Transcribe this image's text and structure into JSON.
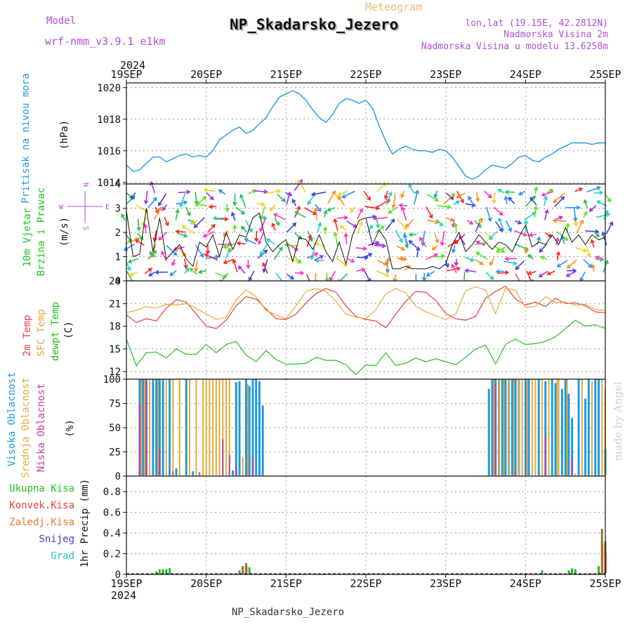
{
  "header": {
    "model_label": "Model",
    "model_value": "wrf-nmm_v3.9.1  e1km",
    "title": "NP_Skadarsko_Jezero",
    "subtitle": "Meteogram",
    "coords": "lon,lat (19.15E, 42.2812N)",
    "height_line": "Nadmorska Visina 2m",
    "model_height_line": "Nadmorska Visina u modelu 13.6258m",
    "footer": "NP_Skadarsko_Jezero",
    "watermark": "made by Angel"
  },
  "time_axis": {
    "year": "2024",
    "labels": [
      "19SEP",
      "20SEP",
      "21SEP",
      "22SEP",
      "23SEP",
      "24SEP",
      "25SEP"
    ]
  },
  "colors": {
    "pressure": "#1e9be0",
    "temp2m": "#e83c3c",
    "sfctemp": "#e8a838",
    "dewpt": "#22c022",
    "high_cloud": "#1e9be0",
    "mid_cloud": "#e8a838",
    "low_cloud": "#c83ca0",
    "total_precip": "#22c022",
    "conv_precip": "#e83c3c",
    "frozen_precip": "#e87830",
    "snow": "#4040d8",
    "graupel": "#20c0c0",
    "wind_speed": "#111111",
    "wind_legend": "#b04ed8"
  },
  "panels": {
    "pressure": {
      "label": "Pritisak na nivou mora",
      "unit": "(hPa)",
      "ticks": [
        "1014",
        "1016",
        "1018",
        "1020"
      ]
    },
    "wind": {
      "label1": "10m Vjetar",
      "label2": "Brzina i Pravac",
      "unit": "(m/s)",
      "ticks": [
        "0",
        "1",
        "2",
        "3",
        "4"
      ],
      "legend_n": "N",
      "legend_s": "S",
      "legend_w": "W",
      "legend_e": "E"
    },
    "temp": {
      "label1": "2m Temp",
      "label2": "SFC Temp",
      "label3": "dewpt Temp",
      "unit": "(C)",
      "ticks": [
        "12",
        "15",
        "18",
        "21",
        "24"
      ]
    },
    "cloud": {
      "label1": "Visoka Oblacnost",
      "label2": "Srednja Oblacnost",
      "label3": "Niska Oblacnost",
      "unit": "(%)",
      "ticks": [
        "0",
        "25",
        "50",
        "75",
        "100"
      ]
    },
    "precip": {
      "label": "1hr Precip (mm)",
      "ticks": [
        "0",
        "0.2",
        "0.4",
        "0.6",
        "0.8"
      ],
      "legend": [
        "Ukupna Kisa",
        "Konvek.Kisa",
        "Zaledj.Kisa",
        "Snijeg",
        "Grad"
      ]
    }
  },
  "chart_data": [
    {
      "type": "line",
      "title": "Pritisak na nivou mora",
      "ylabel": "(hPa)",
      "ylim": [
        1013.9,
        1020.3
      ],
      "xlim": [
        0,
        144
      ],
      "x_unit": "hours from 19SEP 00",
      "series": [
        {
          "name": "Pritisak na nivou mora",
          "x": [
            0,
            2,
            4,
            6,
            8,
            10,
            12,
            14,
            16,
            18,
            20,
            22,
            24,
            26,
            28,
            30,
            32,
            34,
            36,
            38,
            40,
            42,
            44,
            46,
            48,
            50,
            52,
            54,
            56,
            58,
            60,
            62,
            64,
            66,
            68,
            70,
            72,
            74,
            76,
            78,
            80,
            82,
            84,
            86,
            88,
            90,
            92,
            94,
            96,
            98,
            100,
            102,
            104,
            106,
            108,
            110,
            112,
            114,
            116,
            118,
            120,
            122,
            124,
            126,
            128,
            130,
            132,
            134,
            136,
            138,
            140,
            142,
            144
          ],
          "values": [
            1015.1,
            1014.7,
            1014.8,
            1015.2,
            1015.6,
            1015.6,
            1015.3,
            1015.5,
            1015.7,
            1015.8,
            1015.6,
            1015.7,
            1015.6,
            1016.0,
            1016.7,
            1017.0,
            1017.3,
            1017.5,
            1017.1,
            1017.3,
            1017.7,
            1018.1,
            1018.8,
            1019.4,
            1019.6,
            1019.8,
            1019.6,
            1019.2,
            1018.6,
            1018.1,
            1017.8,
            1018.3,
            1019.0,
            1019.3,
            1019.2,
            1019.0,
            1019.2,
            1018.7,
            1017.6,
            1016.6,
            1015.8,
            1016.1,
            1016.3,
            1016.1,
            1016.0,
            1016.0,
            1015.9,
            1016.1,
            1016.0,
            1015.6,
            1015.0,
            1014.4,
            1014.2,
            1014.4,
            1014.8,
            1015.1,
            1015.0,
            1014.9,
            1015.2,
            1015.6,
            1015.7,
            1015.4,
            1015.3,
            1015.6,
            1015.8,
            1016.1,
            1016.3,
            1016.5,
            1016.5,
            1016.5,
            1016.4,
            1016.5,
            1016.5
          ]
        }
      ]
    },
    {
      "type": "line",
      "title": "10m Vjetar Brzina i Pravac",
      "ylabel": "(m/s)",
      "ylim": [
        0,
        4
      ],
      "xlim": [
        0,
        144
      ],
      "x_unit": "hours from 19SEP 00",
      "series": [
        {
          "name": "Brzina",
          "x": [
            0,
            2,
            4,
            6,
            8,
            10,
            12,
            14,
            16,
            18,
            20,
            22,
            24,
            26,
            28,
            30,
            32,
            34,
            36,
            38,
            40,
            42,
            44,
            46,
            48,
            50,
            52,
            54,
            56,
            58,
            60,
            62,
            64,
            66,
            68,
            70,
            72,
            74,
            76,
            78,
            80,
            82,
            84,
            86,
            88,
            90,
            92,
            94,
            96,
            98,
            100,
            102,
            104,
            106,
            108,
            110,
            112,
            114,
            116,
            118,
            120,
            122,
            124,
            126,
            128,
            130,
            132,
            134,
            136,
            138,
            140,
            142,
            144
          ],
          "values": [
            2.9,
            1.0,
            1.1,
            3.0,
            1.2,
            2.6,
            0.9,
            1.2,
            1.5,
            0.9,
            0.6,
            1.6,
            1.4,
            1.9,
            1.0,
            2.0,
            1.3,
            1.9,
            1.8,
            2.6,
            2.8,
            1.6,
            1.2,
            1.5,
            1.7,
            0.8,
            1.8,
            1.7,
            1.3,
            1.9,
            1.2,
            0.8,
            1.6,
            0.7,
            1.9,
            2.5,
            2.6,
            1.5,
            2.1,
            1.7,
            0.5,
            0.5,
            0.6,
            0.5,
            0.5,
            0.5,
            0.6,
            0.5,
            0.7,
            1.5,
            2.0,
            1.2,
            1.5,
            1.9,
            1.6,
            1.3,
            1.6,
            1.5,
            1.2,
            1.8,
            2.3,
            1.4,
            1.6,
            1.5,
            1.9,
            1.5,
            2.2,
            1.6,
            1.9,
            1.5,
            1.9,
            1.7,
            1.8
          ]
        }
      ]
    },
    {
      "type": "line",
      "title": "2m Temp / SFC Temp / dewpt Temp",
      "ylabel": "(C)",
      "ylim": [
        11,
        24
      ],
      "xlim": [
        0,
        144
      ],
      "x_unit": "hours from 19SEP 00",
      "series": [
        {
          "name": "2m Temp",
          "x": [
            0,
            3,
            6,
            9,
            12,
            15,
            18,
            21,
            24,
            27,
            30,
            33,
            36,
            39,
            42,
            45,
            48,
            51,
            54,
            57,
            60,
            63,
            66,
            69,
            72,
            75,
            78,
            81,
            84,
            87,
            90,
            93,
            96,
            99,
            102,
            105,
            108,
            111,
            114,
            117,
            120,
            123,
            126,
            129,
            132,
            135,
            138,
            141,
            144
          ],
          "values": [
            19.5,
            18.5,
            19.0,
            18.7,
            20.4,
            21.5,
            21.2,
            19.6,
            18.0,
            17.7,
            18.8,
            20.7,
            21.9,
            21.6,
            20.3,
            19.0,
            18.9,
            19.6,
            21.1,
            22.3,
            23.0,
            22.5,
            20.7,
            19.3,
            18.9,
            18.7,
            17.8,
            19.6,
            21.3,
            22.6,
            22.5,
            21.4,
            19.7,
            19.0,
            18.8,
            19.3,
            21.7,
            22.6,
            23.3,
            21.6,
            20.8,
            21.2,
            20.6,
            21.7,
            21.0,
            21.1,
            20.7,
            19.9,
            19.8
          ]
        },
        {
          "name": "SFC Temp",
          "x": [
            0,
            3,
            6,
            9,
            12,
            15,
            18,
            21,
            24,
            27,
            30,
            33,
            36,
            39,
            42,
            45,
            48,
            51,
            54,
            57,
            60,
            63,
            66,
            69,
            72,
            75,
            78,
            81,
            84,
            87,
            90,
            93,
            96,
            99,
            102,
            105,
            108,
            111,
            114,
            117,
            120,
            123,
            126,
            129,
            132,
            135,
            138,
            141,
            144
          ],
          "values": [
            19.8,
            20.1,
            20.6,
            20.4,
            20.9,
            20.8,
            21.0,
            20.4,
            19.6,
            18.9,
            19.2,
            21.5,
            22.8,
            21.9,
            20.1,
            19.5,
            19.0,
            20.7,
            22.6,
            23.0,
            22.6,
            21.3,
            19.6,
            19.2,
            19.0,
            20.2,
            22.3,
            23.0,
            22.4,
            20.7,
            19.9,
            19.4,
            18.9,
            19.6,
            22.7,
            23.2,
            22.8,
            19.7,
            23.0,
            22.8,
            20.5,
            20.6,
            21.9,
            21.1,
            21.2,
            20.8,
            20.9,
            20.2,
            20.1
          ]
        },
        {
          "name": "dewpt Temp",
          "x": [
            0,
            3,
            6,
            9,
            12,
            15,
            18,
            21,
            24,
            27,
            30,
            33,
            36,
            39,
            42,
            45,
            48,
            51,
            54,
            57,
            60,
            63,
            66,
            69,
            72,
            75,
            78,
            81,
            84,
            87,
            90,
            93,
            96,
            99,
            102,
            105,
            108,
            111,
            114,
            117,
            120,
            123,
            126,
            129,
            132,
            135,
            138,
            141,
            144
          ],
          "values": [
            16.3,
            12.8,
            14.5,
            14.6,
            13.8,
            15.0,
            14.3,
            14.3,
            15.6,
            14.5,
            15.6,
            16.0,
            14.2,
            13.3,
            14.8,
            13.6,
            13.0,
            13.0,
            13.1,
            13.9,
            13.5,
            13.5,
            12.9,
            11.6,
            12.9,
            12.8,
            14.5,
            12.8,
            13.1,
            13.8,
            13.3,
            13.7,
            13.3,
            12.9,
            13.9,
            15.0,
            15.5,
            13.0,
            15.6,
            16.3,
            15.6,
            15.7,
            16.0,
            16.6,
            17.7,
            18.8,
            18.0,
            18.2,
            17.7
          ]
        }
      ]
    },
    {
      "type": "bar",
      "title": "Visoka / Srednja / Niska Oblacnost",
      "ylabel": "(%)",
      "ylim": [
        0,
        100
      ],
      "xlim": [
        0,
        144
      ],
      "x_unit": "hours from 19SEP 00",
      "series": [
        {
          "name": "Visoka Oblacnost",
          "x": [
            4,
            5,
            6,
            8,
            9,
            10,
            11,
            13,
            15,
            18,
            20,
            32,
            33,
            34,
            36,
            37,
            38,
            39,
            40,
            41,
            109,
            110,
            111,
            112,
            113,
            114,
            115,
            116,
            117,
            118,
            120,
            121,
            124,
            126,
            128,
            129,
            131,
            132,
            133,
            134,
            136,
            138,
            139,
            141,
            142,
            144
          ],
          "values": [
            100,
            100,
            100,
            100,
            100,
            100,
            100,
            100,
            8,
            100,
            5,
            6,
            97,
            98,
            100,
            93,
            100,
            100,
            98,
            73,
            90,
            100,
            100,
            100,
            100,
            100,
            100,
            100,
            100,
            100,
            100,
            100,
            100,
            98,
            100,
            96,
            90,
            100,
            85,
            60,
            100,
            80,
            100,
            100,
            100,
            28
          ]
        },
        {
          "name": "Srednja Oblacnost",
          "x": [
            4.5,
            5.5,
            7,
            9.5,
            12,
            14,
            16,
            19,
            21,
            23,
            24,
            25,
            26,
            27,
            28,
            29,
            30,
            31,
            35,
            36.5,
            110.5,
            112,
            113.5,
            115,
            116.5,
            118,
            119,
            120.5,
            122,
            123,
            125,
            127,
            129.5,
            130,
            132.5,
            135,
            137,
            140,
            143,
            144
          ],
          "values": [
            100,
            100,
            100,
            100,
            100,
            100,
            100,
            100,
            100,
            100,
            100,
            100,
            100,
            100,
            100,
            100,
            100,
            100,
            20,
            95,
            100,
            100,
            100,
            100,
            100,
            100,
            100,
            100,
            100,
            100,
            100,
            100,
            100,
            100,
            100,
            3,
            100,
            98,
            100,
            90
          ]
        },
        {
          "name": "Niska Oblacnost",
          "x": [
            4,
            6,
            10,
            14,
            22,
            29,
            31,
            33,
            38,
            111,
            117,
            126,
            134
          ],
          "values": [
            74,
            98,
            28,
            5,
            4,
            38,
            22,
            10,
            20,
            95,
            4,
            40,
            18
          ]
        }
      ]
    },
    {
      "type": "bar",
      "title": "1hr Precip",
      "ylabel": "1hr Precip (mm)",
      "ylim": [
        0,
        0.95
      ],
      "xlim": [
        0,
        144
      ],
      "x_unit": "hours from 19SEP 00",
      "series": [
        {
          "name": "Ukupna Kisa",
          "x": [
            9,
            10,
            11,
            12,
            13,
            34,
            35,
            36,
            37,
            125,
            133,
            134,
            135,
            142,
            143,
            144
          ],
          "values": [
            0.03,
            0.05,
            0.05,
            0.05,
            0.06,
            0.04,
            0.08,
            0.11,
            0.07,
            0.04,
            0.04,
            0.06,
            0.05,
            0.08,
            0.44,
            0.32
          ]
        },
        {
          "name": "Konvek.Kisa",
          "x": [
            35,
            36,
            142,
            143,
            144
          ],
          "values": [
            0.04,
            0.08,
            0.02,
            0.3,
            0.22
          ]
        }
      ]
    }
  ]
}
